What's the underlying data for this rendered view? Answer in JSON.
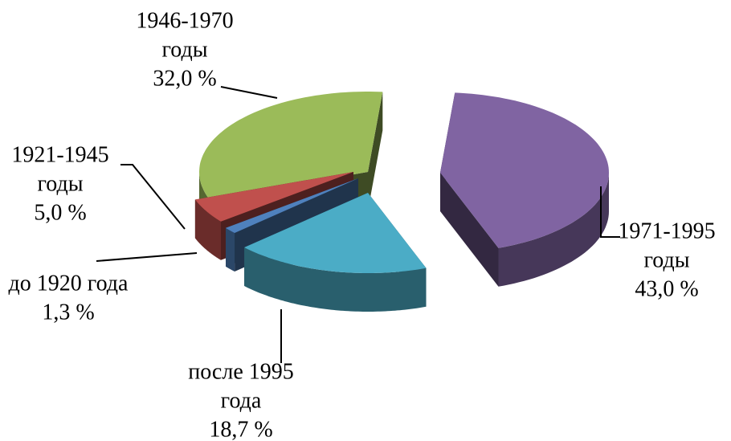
{
  "chart_data": {
    "type": "pie3d",
    "categories": [
      [
        "1971-1995",
        "годы"
      ],
      [
        "после 1995",
        "года"
      ],
      [
        "до 1920 года"
      ],
      [
        "1921-1945",
        "годы"
      ],
      [
        "1946-1970",
        "годы"
      ]
    ],
    "values": [
      43.0,
      18.7,
      1.3,
      5.0,
      32.0
    ],
    "value_labels": [
      "43,0 %",
      "18,7 %",
      "1,3 %",
      "5,0 %",
      "32,0 %"
    ],
    "colors": [
      "#8064a2",
      "#4bacc6",
      "#4f81bd",
      "#c0504d",
      "#9bbb59"
    ]
  }
}
